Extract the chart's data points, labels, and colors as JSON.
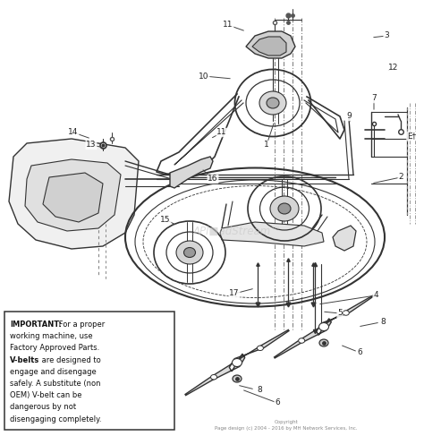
{
  "bg_color": "#ffffff",
  "line_color": "#333333",
  "fill_light": "#e8e8e8",
  "fill_mid": "#cccccc",
  "fill_dark": "#aaaaaa",
  "text_color": "#111111",
  "label_color": "#222222",
  "box_bg": "#ffffff",
  "box_edge": "#333333",
  "watermark_color": "#c8c8c8",
  "dashed_color": "#555555",
  "copyright_text": "Copyright\nPage design (c) 2004 - 2016 by MH Network Services, Inc.",
  "watermark": "APl■adStream™",
  "important_line1_bold": "IMPORTANT:",
  "important_line1_rest": " For a proper",
  "important_lines_plain": [
    "working machine, use",
    "Factory Approved Parts."
  ],
  "vbelts_bold": "V-belts",
  "vbelts_rest": " are designed to",
  "important_lines_rest": [
    "engage and disengage",
    "safely. A substitute (non",
    "OEM) V-belt can be",
    "dangerous by not",
    "disengaging completely."
  ]
}
